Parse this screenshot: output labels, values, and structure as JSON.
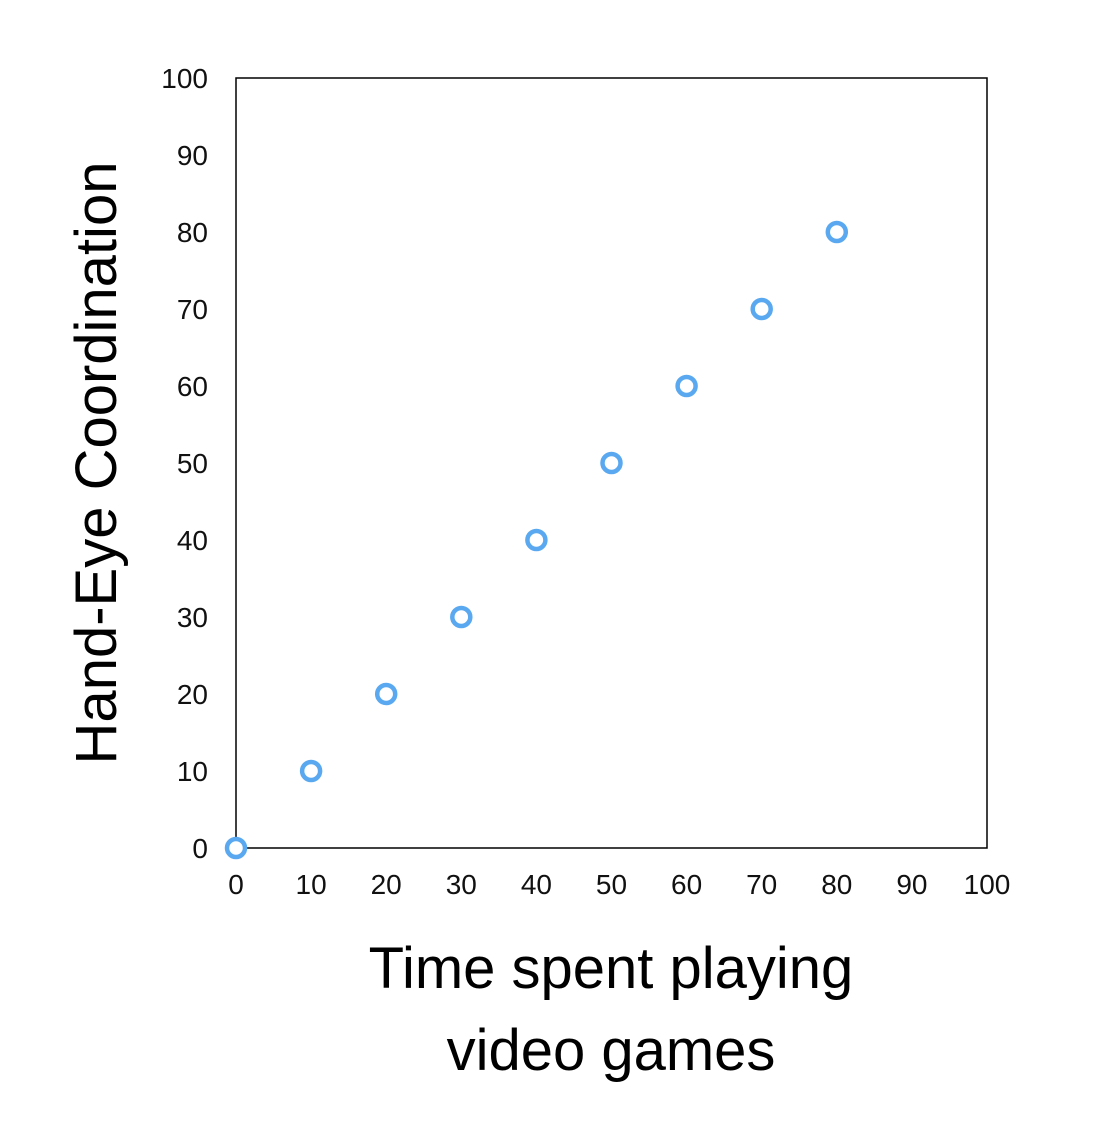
{
  "chart_data": {
    "type": "scatter",
    "title": "",
    "xlabel_lines": [
      "Time spent playing",
      "video games"
    ],
    "ylabel": "Hand-Eye Coordination",
    "xlim": [
      0,
      100
    ],
    "ylim": [
      0,
      100
    ],
    "xticks": [
      0,
      10,
      20,
      30,
      40,
      50,
      60,
      70,
      80,
      90,
      100
    ],
    "yticks": [
      0,
      10,
      20,
      30,
      40,
      50,
      60,
      70,
      80,
      90,
      100
    ],
    "grid": false,
    "marker": "hollow-circle",
    "series": [
      {
        "color": "#5aa9f0",
        "points": [
          {
            "x": 0,
            "y": 0
          },
          {
            "x": 10,
            "y": 10
          },
          {
            "x": 20,
            "y": 20
          },
          {
            "x": 30,
            "y": 30
          },
          {
            "x": 40,
            "y": 40
          },
          {
            "x": 50,
            "y": 50
          },
          {
            "x": 60,
            "y": 60
          },
          {
            "x": 70,
            "y": 70
          },
          {
            "x": 80,
            "y": 80
          }
        ]
      }
    ]
  }
}
